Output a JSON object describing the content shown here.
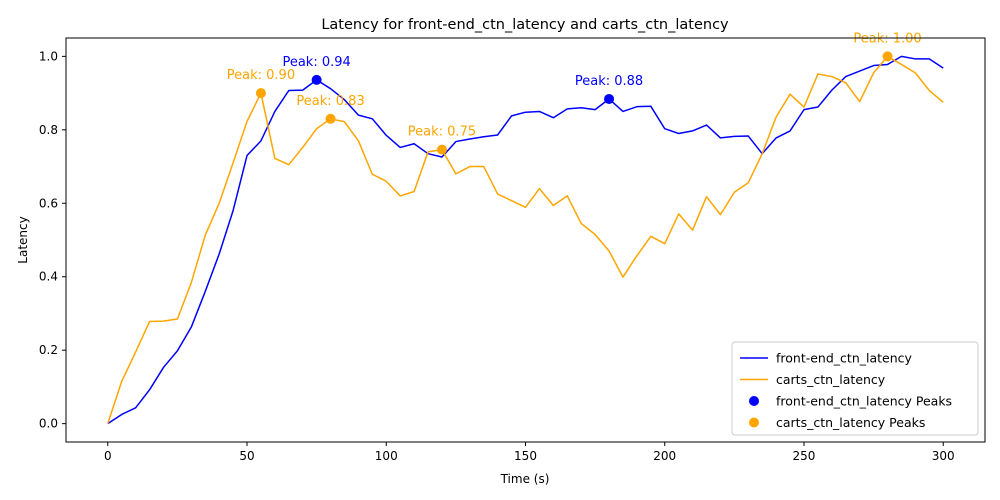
{
  "chart_data": {
    "type": "line",
    "title": "Latency for front-end_ctn_latency and carts_ctn_latency",
    "xlabel": "Time (s)",
    "ylabel": "Latency",
    "xlim": [
      -15,
      315
    ],
    "ylim": [
      -0.05,
      1.05
    ],
    "x_ticks": [
      0,
      50,
      100,
      150,
      200,
      250,
      300
    ],
    "y_ticks": [
      0.0,
      0.2,
      0.4,
      0.6,
      0.8,
      1.0
    ],
    "x_tick_labels": [
      "0",
      "50",
      "100",
      "150",
      "200",
      "250",
      "300"
    ],
    "y_tick_labels": [
      "0.0",
      "0.2",
      "0.4",
      "0.6",
      "0.8",
      "1.0"
    ],
    "grid": false,
    "legend_position": "bottom-right",
    "x": [
      0,
      5,
      10,
      15,
      20,
      25,
      30,
      35,
      40,
      45,
      50,
      55,
      60,
      65,
      70,
      75,
      80,
      85,
      90,
      95,
      100,
      105,
      110,
      115,
      120,
      125,
      130,
      135,
      140,
      145,
      150,
      155,
      160,
      165,
      170,
      175,
      180,
      185,
      190,
      195,
      200,
      205,
      210,
      215,
      220,
      225,
      230,
      235,
      240,
      245,
      250,
      255,
      260,
      265,
      270,
      275,
      280,
      285,
      290,
      295,
      300
    ],
    "series": [
      {
        "name": "front-end_ctn_latency",
        "color": "#0000ff",
        "values": [
          0.0,
          0.025,
          0.043,
          0.092,
          0.153,
          0.198,
          0.263,
          0.36,
          0.462,
          0.58,
          0.73,
          0.77,
          0.85,
          0.907,
          0.908,
          0.936,
          0.912,
          0.882,
          0.84,
          0.83,
          0.785,
          0.752,
          0.762,
          0.735,
          0.726,
          0.768,
          0.775,
          0.781,
          0.786,
          0.838,
          0.848,
          0.85,
          0.833,
          0.857,
          0.86,
          0.855,
          0.884,
          0.85,
          0.863,
          0.864,
          0.803,
          0.79,
          0.797,
          0.813,
          0.778,
          0.782,
          0.783,
          0.735,
          0.778,
          0.797,
          0.855,
          0.862,
          0.908,
          0.945,
          0.96,
          0.975,
          0.978,
          1.0,
          0.993,
          0.993,
          0.968
        ]
      },
      {
        "name": "carts_ctn_latency",
        "color": "#ffa500",
        "values": [
          0.0,
          0.115,
          0.195,
          0.278,
          0.279,
          0.285,
          0.384,
          0.513,
          0.6,
          0.71,
          0.823,
          0.9,
          0.722,
          0.705,
          0.752,
          0.803,
          0.83,
          0.822,
          0.77,
          0.679,
          0.66,
          0.62,
          0.632,
          0.74,
          0.746,
          0.68,
          0.7,
          0.7,
          0.625,
          0.607,
          0.589,
          0.64,
          0.594,
          0.62,
          0.545,
          0.515,
          0.47,
          0.399,
          0.457,
          0.51,
          0.49,
          0.571,
          0.527,
          0.618,
          0.569,
          0.63,
          0.656,
          0.735,
          0.835,
          0.897,
          0.862,
          0.952,
          0.945,
          0.928,
          0.877,
          0.955,
          1.0,
          0.978,
          0.955,
          0.907,
          0.875
        ]
      }
    ],
    "peaks": [
      {
        "series": "front-end_ctn_latency",
        "x": 75,
        "y": 0.936,
        "label": "Peak: 0.94",
        "color": "#0000ff"
      },
      {
        "series": "front-end_ctn_latency",
        "x": 180,
        "y": 0.884,
        "label": "Peak: 0.88",
        "color": "#0000ff"
      },
      {
        "series": "carts_ctn_latency",
        "x": 55,
        "y": 0.9,
        "label": "Peak: 0.90",
        "color": "#ffa500"
      },
      {
        "series": "carts_ctn_latency",
        "x": 80,
        "y": 0.83,
        "label": "Peak: 0.83",
        "color": "#ffa500"
      },
      {
        "series": "carts_ctn_latency",
        "x": 120,
        "y": 0.746,
        "label": "Peak: 0.75",
        "color": "#ffa500"
      },
      {
        "series": "carts_ctn_latency",
        "x": 280,
        "y": 1.0,
        "label": "Peak: 1.00",
        "color": "#ffa500"
      }
    ],
    "legend": [
      {
        "label": "front-end_ctn_latency",
        "kind": "line",
        "color": "#0000ff"
      },
      {
        "label": "carts_ctn_latency",
        "kind": "line",
        "color": "#ffa500"
      },
      {
        "label": "front-end_ctn_latency Peaks",
        "kind": "marker",
        "color": "#0000ff"
      },
      {
        "label": "carts_ctn_latency Peaks",
        "kind": "marker",
        "color": "#ffa500"
      }
    ]
  }
}
